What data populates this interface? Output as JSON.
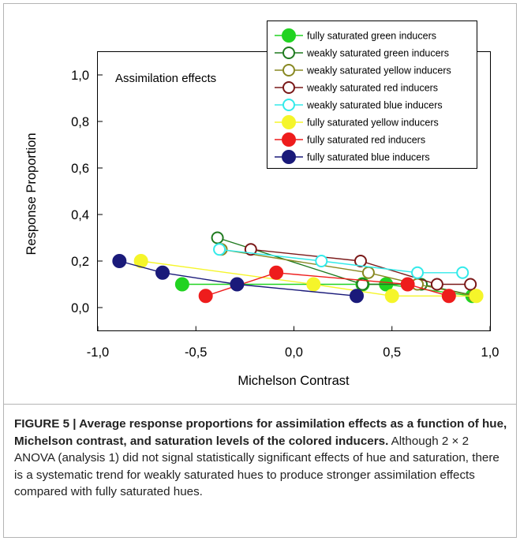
{
  "chart_data": {
    "type": "line",
    "annotation": "Assimilation effects",
    "xlabel": "Michelson Contrast",
    "ylabel": "Response Proportion",
    "xlim": [
      -1.0,
      1.0
    ],
    "ylim": [
      -0.1,
      1.1
    ],
    "x_ticks": [
      -1.0,
      -0.5,
      0.0,
      0.5,
      1.0
    ],
    "x_tick_labels": [
      "-1,0",
      "-0,5",
      "0,0",
      "0,5",
      "1,0"
    ],
    "y_ticks": [
      0.0,
      0.2,
      0.4,
      0.6,
      0.8,
      1.0
    ],
    "y_tick_labels": [
      "0,0",
      "0,2",
      "0,4",
      "0,6",
      "0,8",
      "1,0"
    ],
    "grid": false,
    "legend_position": "top-right",
    "series": [
      {
        "name": "fully saturated green inducers",
        "color": "#21d321",
        "filled": true,
        "points": [
          [
            -0.57,
            0.1
          ],
          [
            0.35,
            0.1
          ],
          [
            0.47,
            0.1
          ],
          [
            0.91,
            0.05
          ]
        ]
      },
      {
        "name": "weakly saturated green inducers",
        "color": "#1f7a1f",
        "filled": false,
        "points": [
          [
            -0.39,
            0.3
          ],
          [
            0.35,
            0.1
          ],
          [
            0.65,
            0.1
          ],
          [
            0.93,
            0.05
          ]
        ]
      },
      {
        "name": "weakly saturated yellow inducers",
        "color": "#888822",
        "filled": false,
        "points": [
          [
            -0.37,
            0.25
          ],
          [
            0.38,
            0.15
          ],
          [
            0.63,
            0.1
          ],
          [
            0.92,
            0.05
          ]
        ]
      },
      {
        "name": "weakly saturated red inducers",
        "color": "#7a1818",
        "filled": false,
        "points": [
          [
            -0.22,
            0.25
          ],
          [
            0.34,
            0.2
          ],
          [
            0.73,
            0.1
          ],
          [
            0.9,
            0.1
          ]
        ]
      },
      {
        "name": "weakly saturated blue inducers",
        "color": "#33eaea",
        "filled": false,
        "points": [
          [
            -0.38,
            0.25
          ],
          [
            0.14,
            0.2
          ],
          [
            0.63,
            0.15
          ],
          [
            0.86,
            0.15
          ]
        ]
      },
      {
        "name": "fully saturated yellow inducers",
        "color": "#f5f52a",
        "filled": true,
        "points": [
          [
            -0.78,
            0.2
          ],
          [
            0.1,
            0.1
          ],
          [
            0.5,
            0.05
          ],
          [
            0.93,
            0.05
          ]
        ]
      },
      {
        "name": "fully saturated red inducers",
        "color": "#ee1c1c",
        "filled": true,
        "points": [
          [
            -0.45,
            0.05
          ],
          [
            -0.09,
            0.15
          ],
          [
            0.58,
            0.1
          ],
          [
            0.79,
            0.05
          ]
        ]
      },
      {
        "name": "fully saturated blue inducers",
        "color": "#1a1a7a",
        "filled": true,
        "points": [
          [
            -0.89,
            0.2
          ],
          [
            -0.67,
            0.15
          ],
          [
            -0.29,
            0.1
          ],
          [
            0.32,
            0.05
          ]
        ]
      }
    ]
  },
  "caption": {
    "title": "FIGURE 5 | Average response proportions for assimilation effects as a function of hue, Michelson contrast, and saturation levels of the colored inducers.",
    "body": " Although 2 × 2 ANOVA (analysis 1) did not signal statistically significant effects of hue and saturation, there is a systematic trend for weakly saturated hues to produce stronger assimilation effects compared with fully saturated hues."
  }
}
